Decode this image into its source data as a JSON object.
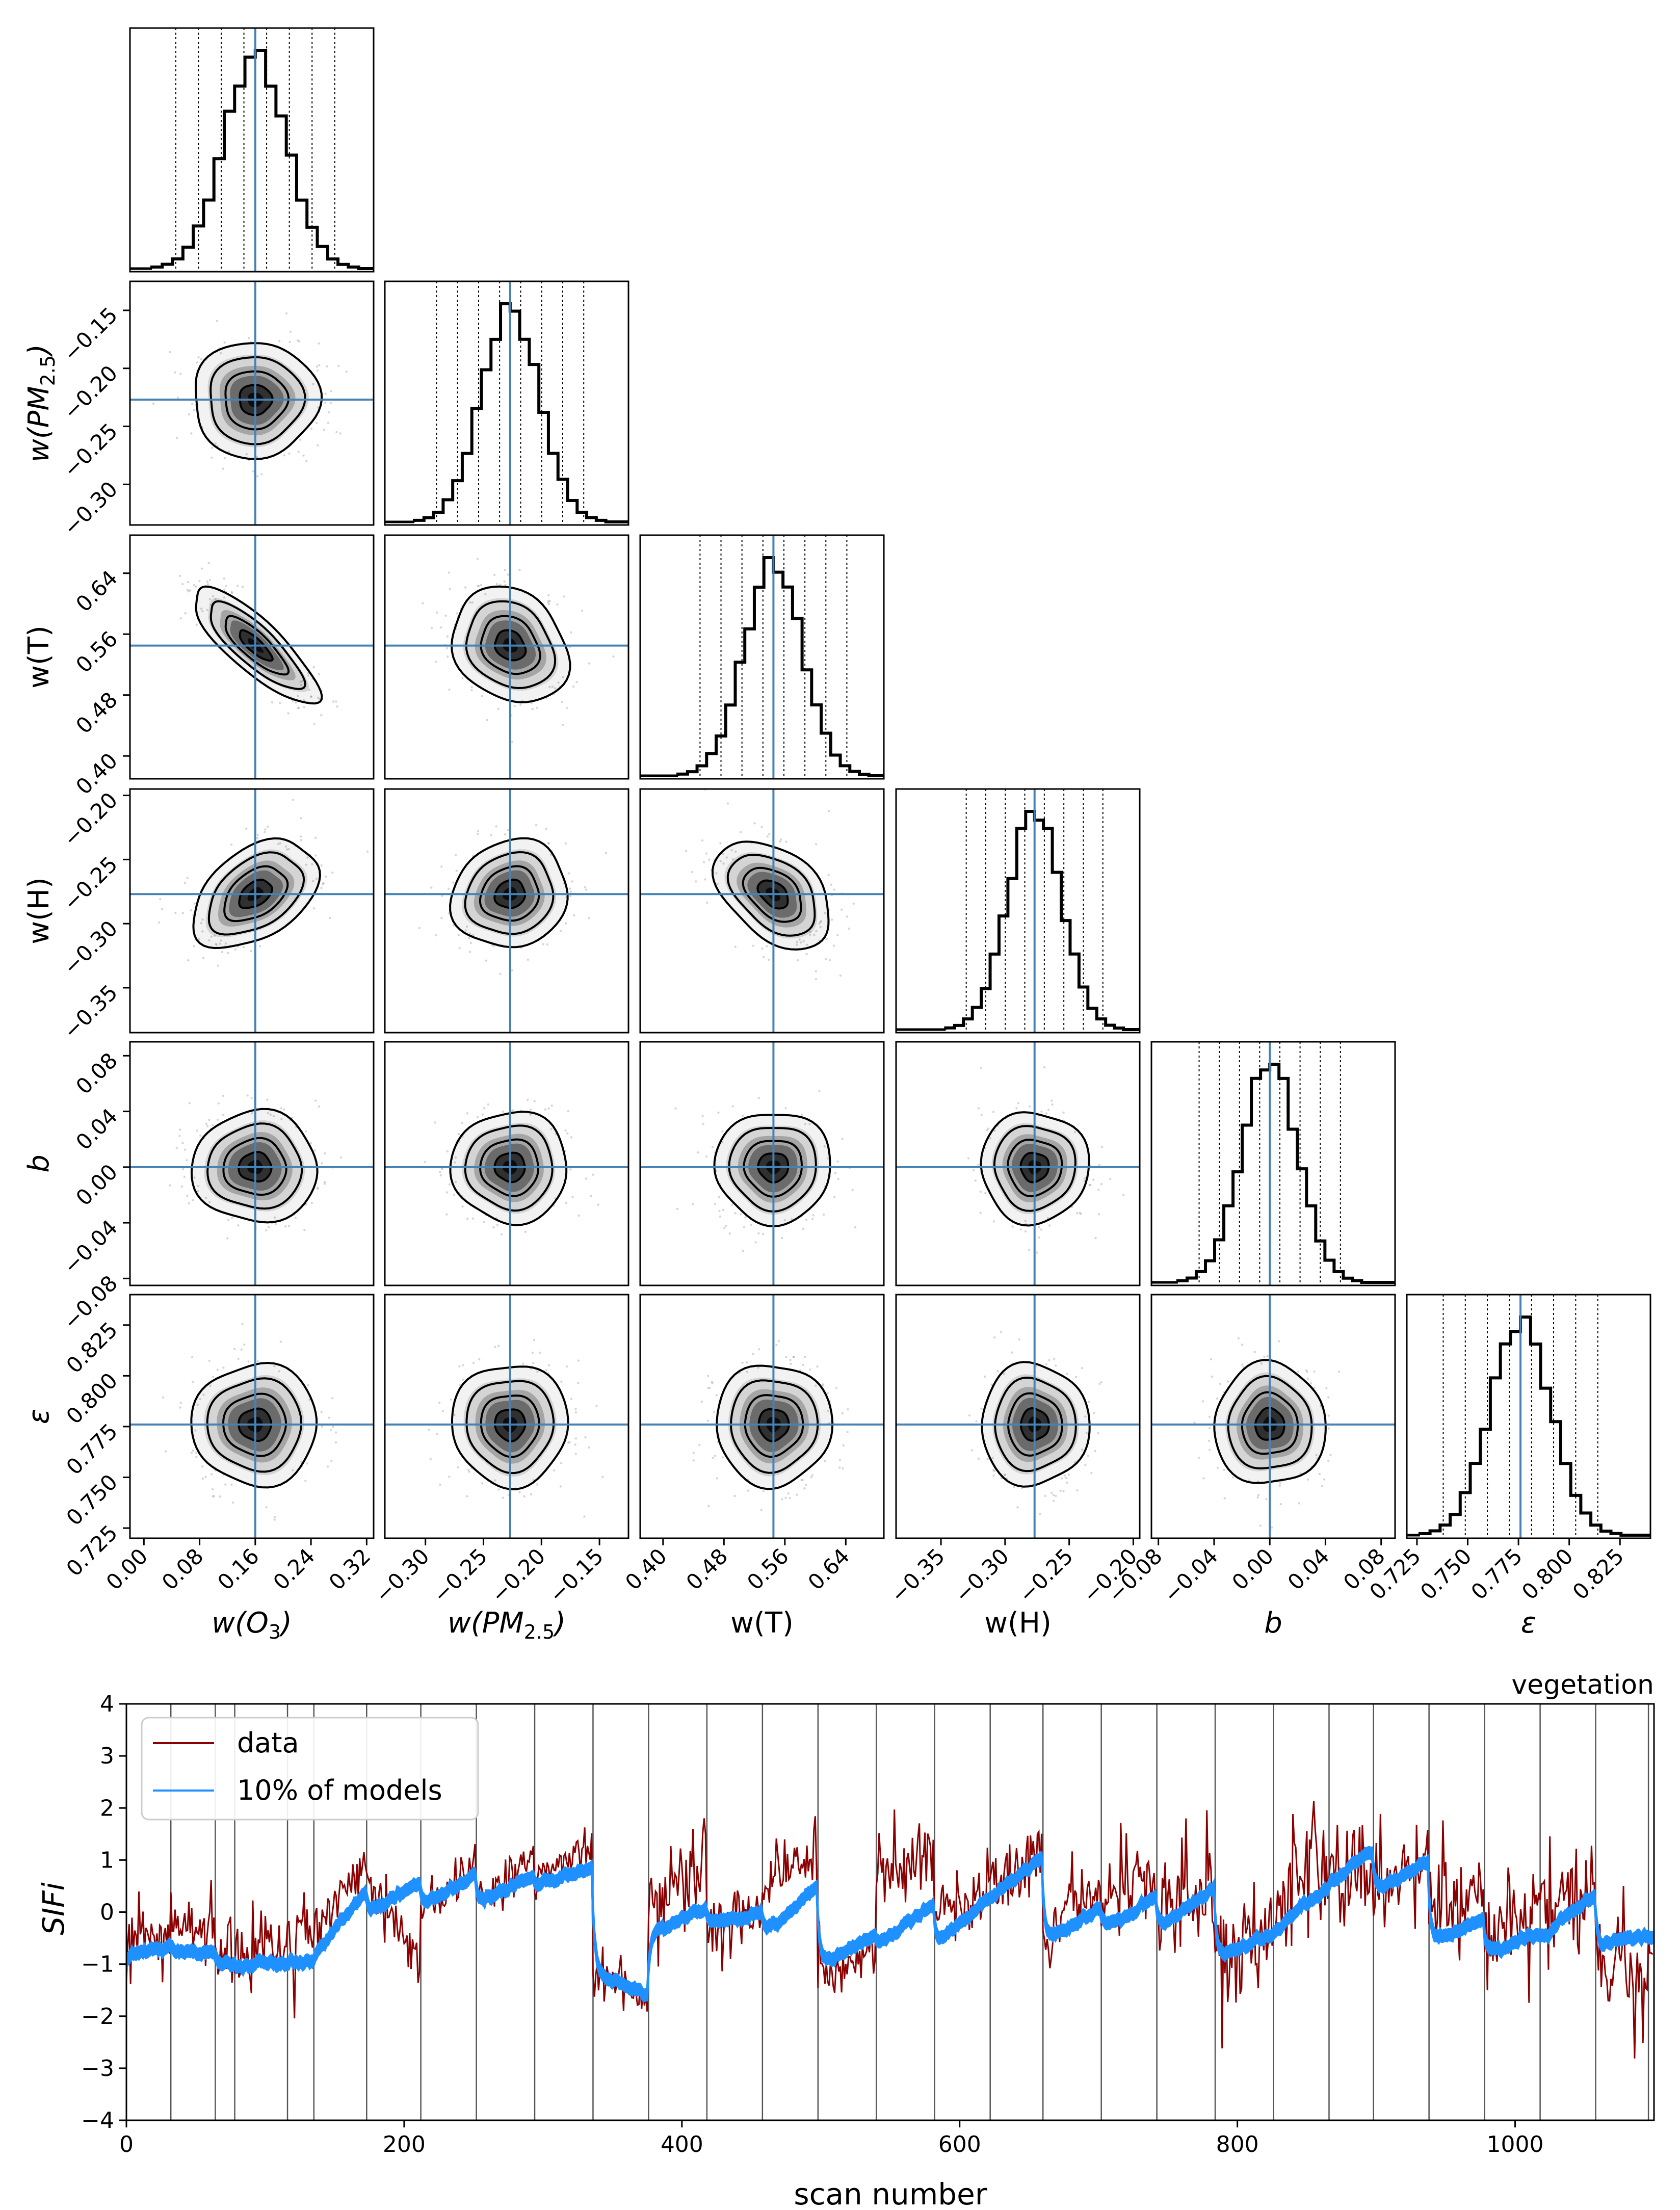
{
  "figure_caption_hidden": "",
  "chart_data": [
    {
      "type": "corner",
      "title": "",
      "parameters": [
        {
          "key": "wO3",
          "label_main": "w(O",
          "label_sub": "3",
          "label_tail": ")",
          "italic": true,
          "range": [
            -0.02,
            0.33
          ],
          "ticks": [
            0.0,
            0.08,
            0.16,
            0.24,
            0.32
          ],
          "tick_labels": [
            "0.00",
            "0.08",
            "0.16",
            "0.24",
            "0.32"
          ],
          "truth": 0.16,
          "std": 0.045
        },
        {
          "key": "wPM",
          "label_main": "w(PM",
          "label_sub": "2.5",
          "label_tail": ")",
          "italic": true,
          "range": [
            -0.335,
            -0.125
          ],
          "ticks": [
            -0.3,
            -0.25,
            -0.2,
            -0.15
          ],
          "tick_labels": [
            "−0.30",
            "−0.25",
            "−0.20",
            "−0.15"
          ],
          "truth": -0.227,
          "std": 0.025
        },
        {
          "key": "wT",
          "label_main": "w(T)",
          "label_sub": "",
          "label_tail": "",
          "italic": false,
          "range": [
            0.37,
            0.69
          ],
          "ticks": [
            0.4,
            0.48,
            0.56,
            0.64
          ],
          "tick_labels": [
            "0.40",
            "0.48",
            "0.56",
            "0.64"
          ],
          "truth": 0.545,
          "std": 0.038
        },
        {
          "key": "wH",
          "label_main": "w(H)",
          "label_sub": "",
          "label_tail": "",
          "italic": false,
          "range": [
            -0.385,
            -0.195
          ],
          "ticks": [
            -0.35,
            -0.3,
            -0.25,
            -0.2
          ],
          "tick_labels": [
            "−0.35",
            "−0.30",
            "−0.25",
            "−0.20"
          ],
          "truth": -0.277,
          "std": 0.021
        },
        {
          "key": "b",
          "label_main": "b",
          "label_sub": "",
          "label_tail": "",
          "italic": true,
          "range": [
            -0.085,
            0.09
          ],
          "ticks": [
            -0.08,
            -0.04,
            0.0,
            0.04,
            0.08
          ],
          "tick_labels": [
            "−0.08",
            "−0.04",
            "0.00",
            "0.04",
            "0.08"
          ],
          "truth": 0.0,
          "std": 0.02
        },
        {
          "key": "eps",
          "label_main": "ε",
          "label_sub": "",
          "label_tail": "",
          "italic": true,
          "range": [
            0.72,
            0.84
          ],
          "ticks": [
            0.725,
            0.75,
            0.775,
            0.8,
            0.825
          ],
          "tick_labels": [
            "0.725",
            "0.750",
            "0.775",
            "0.800",
            "0.825"
          ],
          "truth": 0.776,
          "std": 0.015
        }
      ],
      "correlations": [
        {
          "i": 2,
          "j": 0,
          "rho": -0.82
        },
        {
          "i": 3,
          "j": 0,
          "rho": 0.42
        },
        {
          "i": 3,
          "j": 2,
          "rho": -0.42
        },
        {
          "i": 2,
          "j": 1,
          "rho": -0.2
        },
        {
          "i": 3,
          "j": 1,
          "rho": 0.1
        }
      ],
      "histogram_bins": 20,
      "quantile_lines": 8,
      "colors": {
        "truth": "#4682b4",
        "hist": "#000000",
        "contour": "#000000",
        "samples": "#888888",
        "density": "#000000"
      }
    },
    {
      "type": "line",
      "title": "vegetation",
      "xlabel": "scan number",
      "ylabel": "SIFi",
      "xlim": [
        0,
        1100
      ],
      "ylim": [
        -4,
        4
      ],
      "xticks": [
        0,
        200,
        400,
        600,
        800,
        1000
      ],
      "yticks": [
        -4,
        -3,
        -2,
        -1,
        0,
        1,
        2,
        3,
        4
      ],
      "xtick_labels": [
        "0",
        "200",
        "400",
        "600",
        "800",
        "1000"
      ],
      "ytick_labels": [
        "−4",
        "−3",
        "−2",
        "−1",
        "0",
        "1",
        "2",
        "3",
        "4"
      ],
      "legend": {
        "location": "upper-left",
        "entries": [
          {
            "label": "data",
            "color": "#8b0000"
          },
          {
            "label": "10% of models",
            "color": "#1e90ff"
          }
        ]
      },
      "vertical_lines": [
        32,
        64,
        78,
        116,
        135,
        173,
        212,
        252,
        294,
        336,
        376,
        418,
        458,
        498,
        540,
        582,
        622,
        660,
        702,
        742,
        784,
        826,
        866,
        898,
        938,
        978,
        1018,
        1058,
        1096
      ],
      "segments": [
        {
          "x0": 0,
          "x1": 32,
          "model": -0.85,
          "model_slope": 0.2,
          "data": -0.6,
          "data_slope": 0.2,
          "noise": 0.55
        },
        {
          "x0": 32,
          "x1": 64,
          "model": -0.75,
          "model_slope": -0.05,
          "data": -0.2,
          "data_slope": 0.0,
          "noise": 0.5
        },
        {
          "x0": 64,
          "x1": 78,
          "model": -1.0,
          "model_slope": 0.0,
          "data": -0.7,
          "data_slope": 0.0,
          "noise": 0.6
        },
        {
          "x0": 78,
          "x1": 116,
          "model": -1.05,
          "model_slope": 0.1,
          "data": -1.0,
          "data_slope": 0.3,
          "noise": 0.55
        },
        {
          "x0": 116,
          "x1": 135,
          "model": -0.95,
          "model_slope": 0.0,
          "data": -0.6,
          "data_slope": 0.0,
          "noise": 0.5
        },
        {
          "x0": 135,
          "x1": 173,
          "model": -0.8,
          "model_slope": 1.3,
          "data": -0.3,
          "data_slope": 1.2,
          "noise": 0.45
        },
        {
          "x0": 173,
          "x1": 212,
          "model": 0.0,
          "model_slope": 0.6,
          "data": 0.6,
          "data_slope": -1.6,
          "noise": 0.4
        },
        {
          "x0": 212,
          "x1": 252,
          "model": 0.15,
          "model_slope": 0.6,
          "data": 0.0,
          "data_slope": 1.0,
          "noise": 0.35
        },
        {
          "x0": 252,
          "x1": 294,
          "model": 0.15,
          "model_slope": 0.6,
          "data": 0.2,
          "data_slope": 0.9,
          "noise": 0.35
        },
        {
          "x0": 294,
          "x1": 336,
          "model": 0.5,
          "model_slope": 0.4,
          "data": 0.7,
          "data_slope": 0.6,
          "noise": 0.35
        },
        {
          "x0": 336,
          "x1": 376,
          "model": -1.2,
          "model_slope": -0.4,
          "data": -1.2,
          "data_slope": -0.5,
          "noise": 0.35
        },
        {
          "x0": 376,
          "x1": 418,
          "model": -0.4,
          "model_slope": 0.5,
          "data": 0.4,
          "data_slope": 0.6,
          "noise": 0.7
        },
        {
          "x0": 418,
          "x1": 458,
          "model": -0.2,
          "model_slope": 0.2,
          "data": -0.2,
          "data_slope": 0.3,
          "noise": 0.6
        },
        {
          "x0": 458,
          "x1": 498,
          "model": -0.4,
          "model_slope": 0.9,
          "data": 0.4,
          "data_slope": 0.8,
          "noise": 0.5
        },
        {
          "x0": 498,
          "x1": 540,
          "model": -1.0,
          "model_slope": 0.6,
          "data": -1.2,
          "data_slope": 0.4,
          "noise": 0.45
        },
        {
          "x0": 540,
          "x1": 582,
          "model": -0.6,
          "model_slope": 0.8,
          "data": 0.7,
          "data_slope": 0.5,
          "noise": 0.6
        },
        {
          "x0": 582,
          "x1": 622,
          "model": -0.6,
          "model_slope": 0.9,
          "data": -0.2,
          "data_slope": 0.6,
          "noise": 0.6
        },
        {
          "x0": 622,
          "x1": 660,
          "model": 0.3,
          "model_slope": 0.8,
          "data": 0.4,
          "data_slope": 0.9,
          "noise": 0.6
        },
        {
          "x0": 660,
          "x1": 702,
          "model": -0.6,
          "model_slope": 0.7,
          "data": -0.3,
          "data_slope": 0.7,
          "noise": 0.7
        },
        {
          "x0": 702,
          "x1": 742,
          "model": -0.3,
          "model_slope": 0.6,
          "data": 0.3,
          "data_slope": 0.4,
          "noise": 0.7
        },
        {
          "x0": 742,
          "x1": 784,
          "model": -0.3,
          "model_slope": 0.8,
          "data": 0.0,
          "data_slope": 0.6,
          "noise": 0.95
        },
        {
          "x0": 784,
          "x1": 826,
          "model": -0.9,
          "model_slope": 0.5,
          "data": -0.6,
          "data_slope": 0.3,
          "noise": 0.95
        },
        {
          "x0": 826,
          "x1": 866,
          "model": -0.3,
          "model_slope": 0.8,
          "data": 0.2,
          "data_slope": 0.6,
          "noise": 0.9
        },
        {
          "x0": 866,
          "x1": 898,
          "model": 0.6,
          "model_slope": 0.6,
          "data": 0.6,
          "data_slope": 0.2,
          "noise": 0.8
        },
        {
          "x0": 898,
          "x1": 938,
          "model": 0.4,
          "model_slope": 0.6,
          "data": 0.3,
          "data_slope": 0.6,
          "noise": 0.8
        },
        {
          "x0": 938,
          "x1": 978,
          "model": -0.6,
          "model_slope": 0.5,
          "data": 0.0,
          "data_slope": 0.6,
          "noise": 0.9
        },
        {
          "x0": 978,
          "x1": 1018,
          "model": -0.8,
          "model_slope": 0.4,
          "data": -0.4,
          "data_slope": 0.4,
          "noise": 1.0
        },
        {
          "x0": 1018,
          "x1": 1058,
          "model": -0.5,
          "model_slope": 0.9,
          "data": -0.2,
          "data_slope": 0.5,
          "noise": 1.1
        },
        {
          "x0": 1058,
          "x1": 1096,
          "model": -0.6,
          "model_slope": 0.2,
          "data": -1.0,
          "data_slope": -0.4,
          "noise": 1.0
        },
        {
          "x0": 1096,
          "x1": 1100,
          "model": -0.5,
          "model_slope": 0.0,
          "data": -0.6,
          "data_slope": 0.0,
          "noise": 0.5
        }
      ],
      "model_band_halfwidth": 0.11,
      "colors": {
        "data": "#8b0000",
        "model": "#1e90ff",
        "vlines": "#555555",
        "axis": "#000000"
      }
    }
  ]
}
